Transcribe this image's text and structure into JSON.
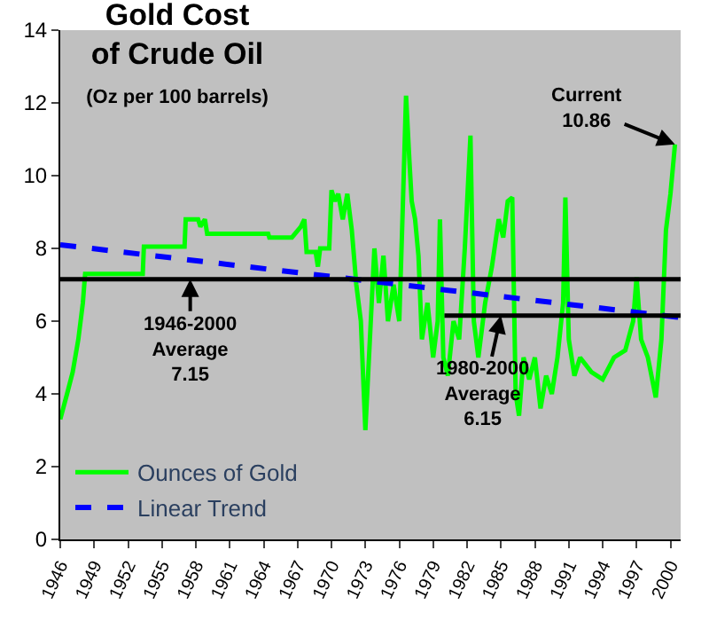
{
  "chart_data": {
    "type": "line",
    "title": "Gold Cost\nof Crude Oil",
    "subtitle": "(Oz per 100 barrels)",
    "xlim": [
      1946,
      2000.9
    ],
    "xticks": [
      1946,
      1949,
      1952,
      1955,
      1958,
      1961,
      1964,
      1967,
      1970,
      1973,
      1976,
      1979,
      1982,
      1985,
      1988,
      1991,
      1994,
      1997,
      2000
    ],
    "ylim": [
      0,
      14
    ],
    "yticks": [
      0,
      2,
      4,
      6,
      8,
      10,
      12,
      14
    ],
    "grid": false,
    "legend": "bottom left",
    "series": [
      {
        "name": "Ounces of Gold",
        "color": "#00ff00",
        "x": [
          1946.0,
          1946.6,
          1947.1,
          1947.6,
          1948.0,
          1948.2,
          1953.3,
          1953.4,
          1957.0,
          1957.1,
          1958.2,
          1958.4,
          1958.8,
          1959.0,
          1964.4,
          1964.5,
          1966.5,
          1967.3,
          1967.6,
          1967.8,
          1968.6,
          1968.8,
          1969.0,
          1969.8,
          1970.0,
          1970.3,
          1970.6,
          1971.0,
          1971.4,
          1971.8,
          1972.2,
          1972.6,
          1973.0,
          1973.4,
          1973.8,
          1974.2,
          1974.6,
          1975.0,
          1975.5,
          1976.0,
          1976.3,
          1976.6,
          1976.9,
          1977.1,
          1977.4,
          1977.7,
          1978.0,
          1978.5,
          1979.0,
          1979.4,
          1979.6,
          1979.9,
          1980.3,
          1980.8,
          1981.3,
          1981.8,
          1982.3,
          1982.6,
          1983.0,
          1983.6,
          1984.2,
          1984.8,
          1985.2,
          1985.6,
          1986.0,
          1986.3,
          1986.6,
          1987.0,
          1987.5,
          1988.0,
          1988.5,
          1989.0,
          1989.5,
          1990.0,
          1990.5,
          1990.7,
          1991.0,
          1991.5,
          1992.0,
          1993.0,
          1994.0,
          1995.0,
          1996.0,
          1996.7,
          1997.0,
          1997.4,
          1998.0,
          1998.7,
          1999.2,
          1999.6,
          2000.0,
          2000.4
        ],
        "values": [
          3.3,
          4.0,
          4.6,
          5.5,
          6.5,
          7.3,
          7.3,
          8.05,
          8.05,
          8.8,
          8.8,
          8.6,
          8.8,
          8.4,
          8.4,
          8.3,
          8.3,
          8.6,
          8.8,
          7.9,
          7.9,
          7.5,
          8.0,
          8.0,
          9.6,
          9.3,
          9.5,
          8.8,
          9.5,
          8.5,
          7.0,
          6.0,
          3.0,
          5.5,
          8.0,
          6.5,
          7.8,
          6.0,
          7.0,
          6.0,
          9.0,
          12.2,
          10.4,
          9.3,
          8.8,
          7.8,
          5.5,
          6.5,
          5.0,
          6.0,
          8.8,
          5.0,
          4.5,
          6.0,
          5.5,
          8.0,
          11.1,
          6.0,
          5.0,
          6.5,
          7.5,
          8.8,
          8.3,
          9.3,
          9.4,
          4.0,
          3.4,
          5.0,
          4.4,
          5.0,
          3.6,
          4.5,
          4.0,
          5.0,
          6.5,
          9.4,
          5.5,
          4.5,
          5.0,
          4.6,
          4.4,
          5.0,
          5.2,
          6.0,
          7.2,
          5.5,
          5.0,
          3.9,
          5.5,
          8.5,
          9.5,
          10.86
        ],
        "line_style": "solid"
      },
      {
        "name": "Linear Trend",
        "color": "#0000ff",
        "x": [
          1946,
          2000.9
        ],
        "values": [
          8.1,
          6.1
        ],
        "line_style": "dashed"
      },
      {
        "color": "#000000",
        "x": [
          1980,
          2000.9
        ],
        "values": [
          6.15,
          6.15
        ],
        "line_style": "solid"
      }
    ],
    "ref_lines": [
      {
        "axis": "y",
        "value": 7.15,
        "color": "#000000"
      }
    ],
    "annotations": [
      {
        "text": "1946-2000\nAverage\n7.15",
        "x": 1957.5,
        "y": 7.15
      },
      {
        "text": "1980-2000\nAverage\n6.15",
        "x": 1985,
        "y": 6.15
      },
      {
        "text": "Current\n10.86",
        "x": 2000.4,
        "y": 10.86
      }
    ]
  }
}
